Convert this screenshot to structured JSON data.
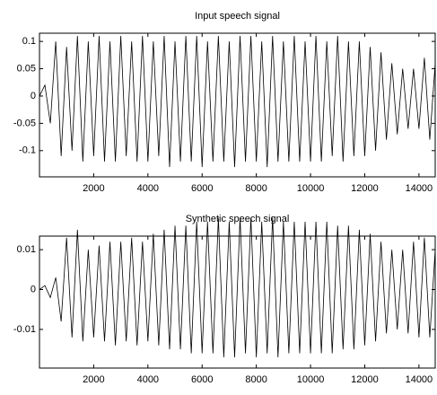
{
  "chart_data": [
    {
      "type": "line",
      "title": "Input speech signal",
      "color": "#000000",
      "x": [
        0,
        200,
        400,
        600,
        800,
        1000,
        1200,
        1400,
        1600,
        1800,
        2000,
        2200,
        2400,
        2600,
        2800,
        3000,
        3200,
        3400,
        3600,
        3800,
        4000,
        4200,
        4400,
        4600,
        4800,
        5000,
        5200,
        5400,
        5600,
        5800,
        6000,
        6200,
        6400,
        6600,
        6800,
        7000,
        7200,
        7400,
        7600,
        7800,
        8000,
        8200,
        8400,
        8600,
        8800,
        9000,
        9200,
        9400,
        9600,
        9800,
        10000,
        10200,
        10400,
        10600,
        10800,
        11000,
        11200,
        11400,
        11600,
        11800,
        12000,
        12200,
        12400,
        12600,
        12800,
        13000,
        13200,
        13400,
        13600,
        13800,
        14000,
        14200,
        14400,
        14600
      ],
      "values": [
        0,
        0.02,
        -0.05,
        0.1,
        -0.11,
        0.09,
        -0.1,
        0.11,
        -0.12,
        0.1,
        -0.11,
        0.11,
        -0.12,
        0.1,
        -0.12,
        0.11,
        -0.11,
        0.1,
        -0.12,
        0.11,
        -0.12,
        0.1,
        -0.11,
        0.11,
        -0.13,
        0.1,
        -0.12,
        0.11,
        -0.12,
        0.11,
        -0.13,
        0.1,
        -0.12,
        0.11,
        -0.12,
        0.1,
        -0.13,
        0.11,
        -0.12,
        0.11,
        -0.12,
        0.1,
        -0.13,
        0.11,
        -0.12,
        0.1,
        -0.12,
        0.11,
        -0.12,
        0.1,
        -0.12,
        0.11,
        -0.12,
        0.1,
        -0.11,
        0.11,
        -0.12,
        0.1,
        -0.11,
        0.1,
        -0.11,
        0.09,
        -0.1,
        0.08,
        -0.08,
        0.06,
        -0.07,
        0.05,
        -0.06,
        0.05,
        -0.06,
        0.07,
        -0.08,
        0.06
      ],
      "xlim": [
        0,
        14600
      ],
      "xticks": [
        2000,
        4000,
        6000,
        8000,
        10000,
        12000,
        14000
      ],
      "ylim": [
        -0.148,
        0.115
      ],
      "yticks": [
        -0.1,
        -0.05,
        0,
        0.05,
        0.1
      ]
    },
    {
      "type": "line",
      "title": "Synthetic speech signal",
      "color": "#000000",
      "x": [
        0,
        200,
        400,
        600,
        800,
        1000,
        1200,
        1400,
        1600,
        1800,
        2000,
        2200,
        2400,
        2600,
        2800,
        3000,
        3200,
        3400,
        3600,
        3800,
        4000,
        4200,
        4400,
        4600,
        4800,
        5000,
        5200,
        5400,
        5600,
        5800,
        6000,
        6200,
        6400,
        6600,
        6800,
        7000,
        7200,
        7400,
        7600,
        7800,
        8000,
        8200,
        8400,
        8600,
        8800,
        9000,
        9200,
        9400,
        9600,
        9800,
        10000,
        10200,
        10400,
        10600,
        10800,
        11000,
        11200,
        11400,
        11600,
        11800,
        12000,
        12200,
        12400,
        12600,
        12800,
        13000,
        13200,
        13400,
        13600,
        13800,
        14000,
        14200,
        14400,
        14600
      ],
      "values": [
        0,
        0.001,
        -0.002,
        0.003,
        -0.008,
        0.013,
        -0.012,
        0.015,
        -0.013,
        0.01,
        -0.012,
        0.011,
        -0.013,
        0.012,
        -0.014,
        0.012,
        -0.013,
        0.013,
        -0.014,
        0.012,
        -0.013,
        0.014,
        -0.014,
        0.015,
        -0.015,
        0.016,
        -0.015,
        0.016,
        -0.016,
        0.017,
        -0.016,
        0.017,
        -0.016,
        0.018,
        -0.017,
        0.017,
        -0.017,
        0.018,
        -0.016,
        0.018,
        -0.017,
        0.017,
        -0.016,
        0.018,
        -0.017,
        0.017,
        -0.016,
        0.017,
        -0.016,
        0.017,
        -0.016,
        0.017,
        -0.016,
        0.017,
        -0.016,
        0.016,
        -0.015,
        0.016,
        -0.015,
        0.015,
        -0.014,
        0.014,
        -0.013,
        0.012,
        -0.011,
        0.01,
        -0.01,
        0.01,
        -0.011,
        0.012,
        -0.012,
        0.013,
        -0.012,
        0.01
      ],
      "xlim": [
        0,
        14600
      ],
      "xticks": [
        2000,
        4000,
        6000,
        8000,
        10000,
        12000,
        14000
      ],
      "ylim": [
        -0.0197,
        0.0134
      ],
      "yticks": [
        -0.01,
        0,
        0.01
      ]
    }
  ]
}
